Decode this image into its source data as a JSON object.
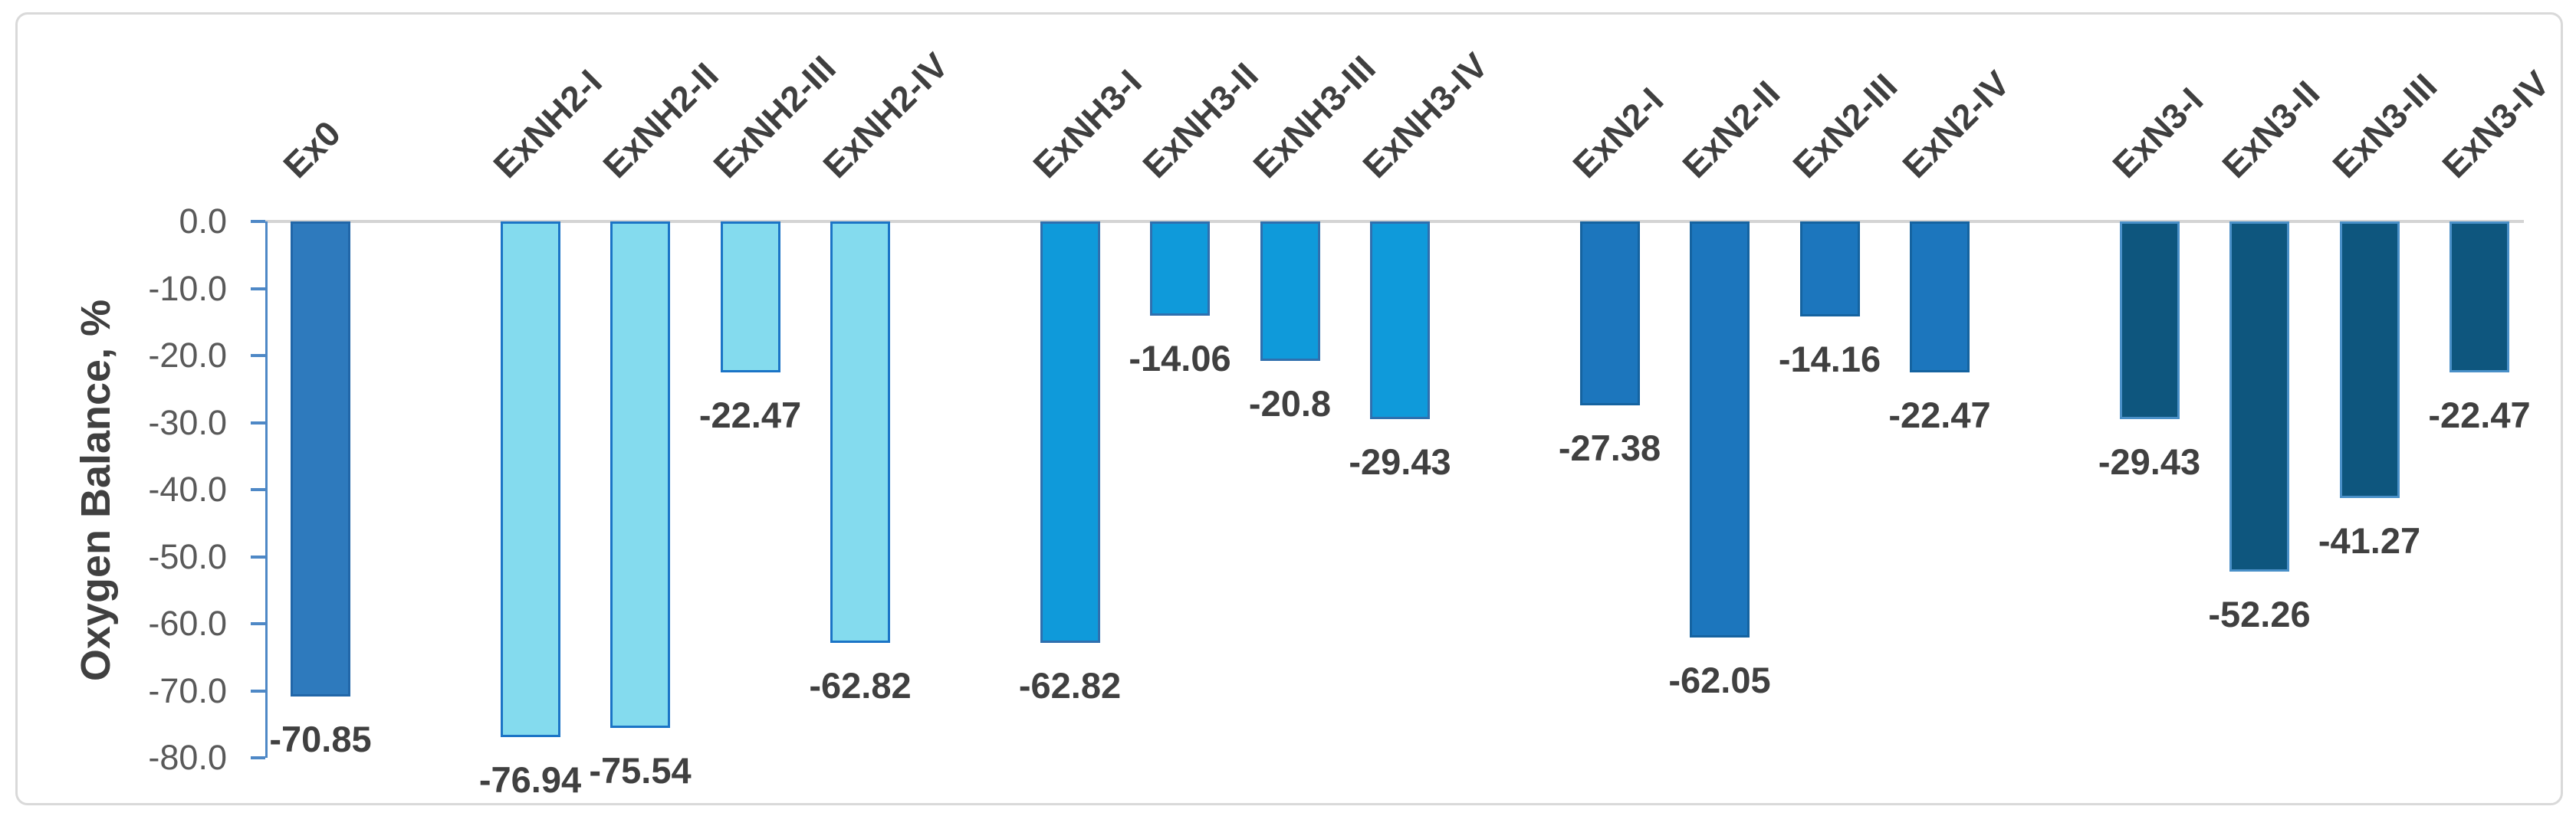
{
  "chart_data": {
    "type": "bar",
    "title": "",
    "ylabel": "Oxygen Balance, %",
    "xlabel": "",
    "ylim": [
      -80,
      0
    ],
    "ytick_step": 10,
    "yticks": [
      "0.0",
      "-10.0",
      "-20.0",
      "-30.0",
      "-40.0",
      "-50.0",
      "-60.0",
      "-70.0",
      "-80.0"
    ],
    "grid": "zero-baseline-only",
    "legend": "none",
    "data_labels": "shown-below-bars",
    "category_label_rotation_deg": 45,
    "categories": [
      "Ex0",
      "ExNH2-I",
      "ExNH2-II",
      "ExNH2-III",
      "ExNH2-IV",
      "ExNH3-I",
      "ExNH3-II",
      "ExNH3-III",
      "ExNH3-IV",
      "ExN2-I",
      "ExN2-II",
      "ExN2-III",
      "ExN2-IV",
      "ExN3-I",
      "ExN3-II",
      "ExN3-III",
      "ExN3-IV"
    ],
    "values": [
      -70.85,
      -76.94,
      -75.54,
      -22.47,
      -62.82,
      -62.82,
      -14.06,
      -20.8,
      -29.43,
      -27.38,
      -62.05,
      -14.16,
      -22.47,
      -29.43,
      -52.26,
      -41.27,
      -22.47
    ],
    "bar_groups": [
      {
        "name": "Ex0",
        "fill": "#2E7ABD",
        "stroke": "#2166A8",
        "bars": [
          {
            "category": "Ex0",
            "value": -70.85,
            "label": "-70.85"
          }
        ]
      },
      {
        "name": "ExNH2",
        "fill": "#84DBEE",
        "stroke": "#1B74C6",
        "bars": [
          {
            "category": "ExNH2-I",
            "value": -76.94,
            "label": "-76.94"
          },
          {
            "category": "ExNH2-II",
            "value": -75.54,
            "label": "-75.54"
          },
          {
            "category": "ExNH2-III",
            "value": -22.47,
            "label": "-22.47"
          },
          {
            "category": "ExNH2-IV",
            "value": -62.82,
            "label": "-62.82"
          }
        ]
      },
      {
        "name": "ExNH3",
        "fill": "#0F9ADA",
        "stroke": "#2F6FAE",
        "bars": [
          {
            "category": "ExNH3-I",
            "value": -62.82,
            "label": "-62.82"
          },
          {
            "category": "ExNH3-II",
            "value": -14.06,
            "label": "-14.06"
          },
          {
            "category": "ExNH3-III",
            "value": -20.8,
            "label": "-20.8"
          },
          {
            "category": "ExNH3-IV",
            "value": -29.43,
            "label": "-29.43"
          }
        ]
      },
      {
        "name": "ExN2",
        "fill": "#1C76BD",
        "stroke": "#1563A0",
        "bars": [
          {
            "category": "ExN2-I",
            "value": -27.38,
            "label": "-27.38"
          },
          {
            "category": "ExN2-II",
            "value": -62.05,
            "label": "-62.05"
          },
          {
            "category": "ExN2-III",
            "value": -14.16,
            "label": "-14.16"
          },
          {
            "category": "ExN2-IV",
            "value": -22.47,
            "label": "-22.47"
          }
        ]
      },
      {
        "name": "ExN3",
        "fill": "#0E567E",
        "stroke": "#4A90C8",
        "bars": [
          {
            "category": "ExN3-I",
            "value": -29.43,
            "label": "-29.43"
          },
          {
            "category": "ExN3-II",
            "value": -52.26,
            "label": "-52.26"
          },
          {
            "category": "ExN3-III",
            "value": -41.27,
            "label": "-41.27"
          },
          {
            "category": "ExN3-IV",
            "value": -22.47,
            "label": "-22.47"
          }
        ]
      }
    ],
    "colors": {
      "frame_border": "#D9D9D9",
      "zero_line": "#D4D4D4",
      "axis_blue": "#4E88C6",
      "tick_label": "#595959",
      "text_dark": "#404040"
    }
  }
}
